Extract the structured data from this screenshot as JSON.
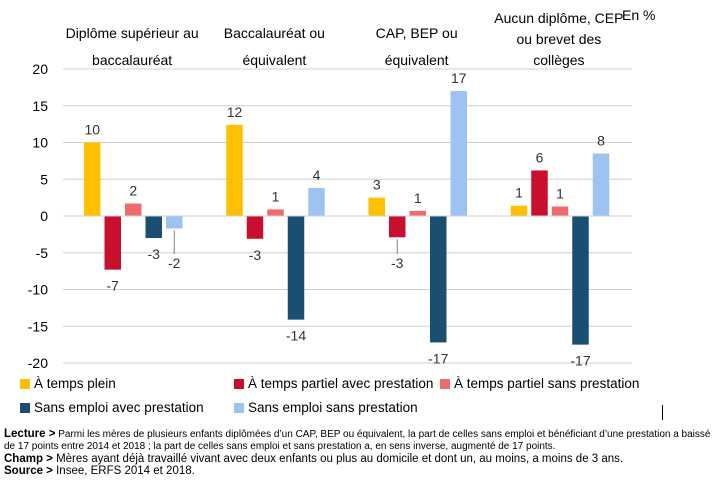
{
  "unit_label": "En %",
  "chart_data": {
    "type": "bar",
    "categories": [
      "Diplôme supérieur au baccalauréat",
      "Baccalauréat ou équivalent",
      "CAP, BEP ou équivalent",
      "Aucun diplôme, CEP ou brevet des collèges"
    ],
    "category_lines": [
      [
        "Diplôme supérieur au",
        "baccalauréat"
      ],
      [
        "Baccalauréat ou",
        "équivalent"
      ],
      [
        "CAP, BEP ou",
        "équivalent"
      ],
      [
        "Aucun diplôme, CEP",
        "ou brevet des",
        "collèges"
      ]
    ],
    "series": [
      {
        "name": "À temps plein",
        "color": "#FFC000",
        "values": [
          10,
          12.4,
          2.5,
          1.4
        ],
        "labels": [
          "10",
          "12",
          "3",
          "1"
        ]
      },
      {
        "name": "À temps partiel avec prestation",
        "color": "#C8102E",
        "values": [
          -7.3,
          -3.1,
          -2.9,
          6.2
        ],
        "labels": [
          "-7",
          "-3",
          "-3",
          "6"
        ]
      },
      {
        "name": "À temps partiel sans prestation",
        "color": "#F06B6B",
        "values": [
          1.7,
          0.9,
          0.7,
          1.3
        ],
        "labels": [
          "2",
          "1",
          "1",
          "1"
        ]
      },
      {
        "name": "Sans emploi avec prestation",
        "color": "#1B4F72",
        "values": [
          -3,
          -14.1,
          -17.2,
          -17.5
        ],
        "labels": [
          "-3",
          "-14",
          "-17",
          "-17"
        ]
      },
      {
        "name": "Sans emploi sans prestation",
        "color": "#9DC3F2",
        "values": [
          -1.7,
          3.8,
          17,
          8.5
        ],
        "labels": [
          "-2",
          "4",
          "17",
          "8"
        ]
      }
    ],
    "ylim": [
      -20,
      20
    ],
    "yticks": [
      -20,
      -15,
      -10,
      -5,
      0,
      5,
      10,
      15,
      20
    ],
    "ytick_labels": [
      "-20",
      "-15",
      "-10",
      "-5",
      "0",
      "5",
      "10",
      "15",
      "20"
    ],
    "grid": true,
    "legend_position": "bottom"
  },
  "notes": {
    "lecture_label": "Lecture >",
    "lecture_text": " Parmi les mères de plusieurs enfants diplômées d’un CAP, BEP ou équivalent, la part de celles sans emploi et bénéficiant d’une prestation a baissé de 17 points entre 2014 et 2018 ; la part de celles sans emploi et sans prestation a, en sens inverse, augmenté de 17 points.",
    "champ_label": "Champ >",
    "champ_text": " Mères ayant déjà travaillé vivant avec deux enfants ou plus au domicile et dont un, au moins, a moins de 3 ans.",
    "source_label": "Source >",
    "source_text": " Insee, ERFS 2014 et 2018."
  }
}
